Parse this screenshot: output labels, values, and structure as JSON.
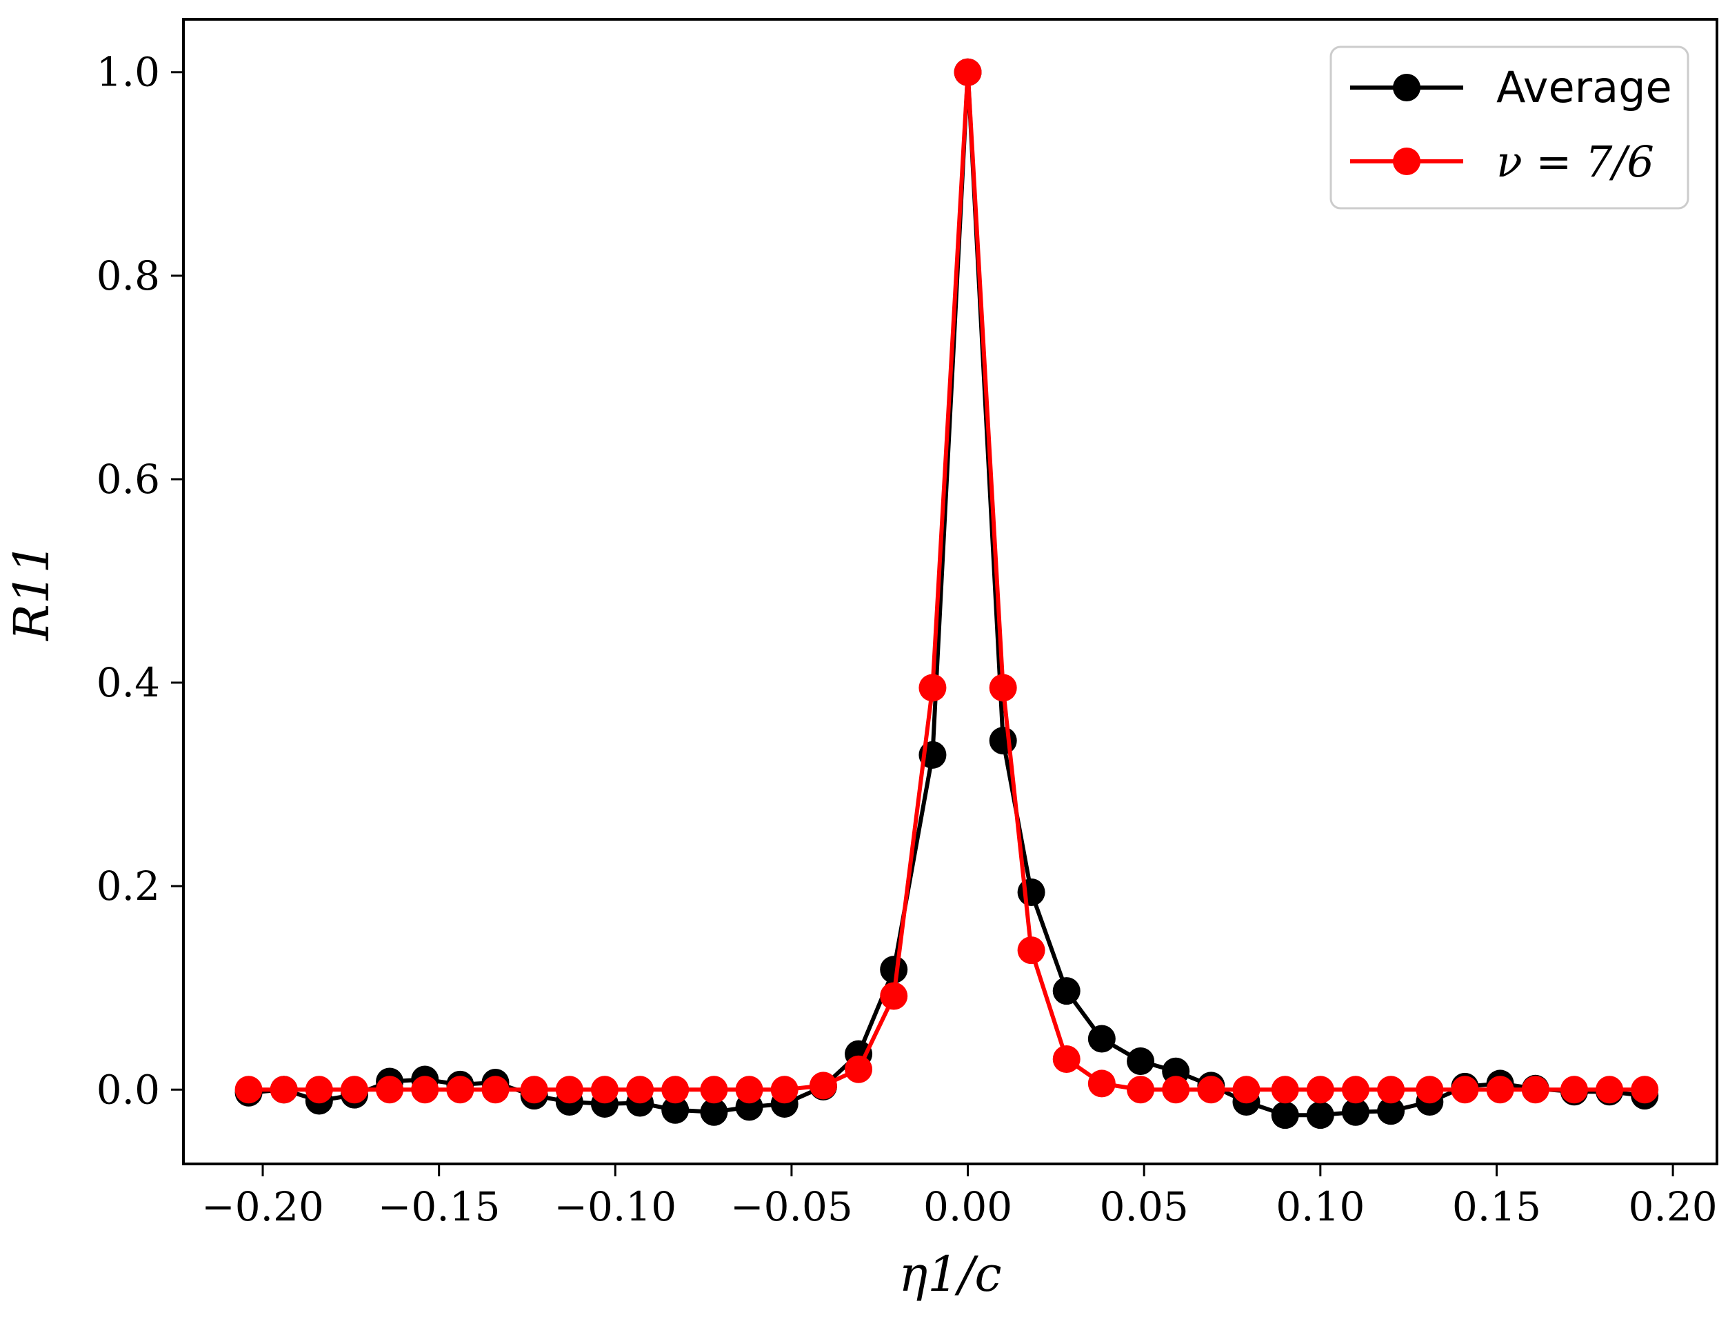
{
  "chart_data": {
    "type": "line",
    "xlabel": "η1/c",
    "ylabel": "R11",
    "xlim": [
      -0.2225,
      0.2125
    ],
    "ylim": [
      -0.073,
      1.052
    ],
    "xticks": [
      -0.2,
      -0.15,
      -0.1,
      -0.05,
      0.0,
      0.05,
      0.1,
      0.15,
      0.2
    ],
    "xtick_labels": [
      "−0.20",
      "−0.15",
      "−0.10",
      "−0.05",
      "0.00",
      "0.05",
      "0.10",
      "0.15",
      "0.20"
    ],
    "yticks": [
      0.0,
      0.2,
      0.4,
      0.6,
      0.8,
      1.0
    ],
    "ytick_labels": [
      "0.0",
      "0.2",
      "0.4",
      "0.6",
      "0.8",
      "1.0"
    ],
    "legend_position": "top-right",
    "grid": false,
    "x": [
      -0.204,
      -0.194,
      -0.184,
      -0.174,
      -0.164,
      -0.154,
      -0.144,
      -0.134,
      -0.123,
      -0.113,
      -0.103,
      -0.093,
      -0.083,
      -0.072,
      -0.062,
      -0.052,
      -0.041,
      -0.031,
      -0.021,
      -0.01,
      0.0,
      0.01,
      0.018,
      0.028,
      0.038,
      0.049,
      0.059,
      0.069,
      0.079,
      0.09,
      0.1,
      0.11,
      0.12,
      0.131,
      0.141,
      0.151,
      0.161,
      0.172,
      0.182,
      0.192
    ],
    "series": [
      {
        "name": "Average",
        "color": "#000000",
        "values": [
          -0.003,
          0.0,
          -0.011,
          -0.005,
          0.008,
          0.01,
          0.005,
          0.007,
          -0.006,
          -0.012,
          -0.014,
          -0.013,
          -0.02,
          -0.022,
          -0.017,
          -0.014,
          0.003,
          0.035,
          0.118,
          0.329,
          1.0,
          0.343,
          0.194,
          0.097,
          0.05,
          0.028,
          0.018,
          0.004,
          -0.012,
          -0.025,
          -0.025,
          -0.022,
          -0.021,
          -0.012,
          0.003,
          0.006,
          0.001,
          -0.002,
          -0.002,
          -0.006
        ]
      },
      {
        "name": "ν = 7/6",
        "color": "#ff0000",
        "values": [
          0.0,
          0.0,
          0.0,
          0.0,
          0.0,
          0.0,
          0.0,
          0.0,
          0.0,
          0.0,
          0.0,
          0.0,
          0.0,
          0.0,
          0.0,
          0.0,
          0.004,
          0.02,
          0.092,
          0.395,
          1.0,
          0.395,
          0.137,
          0.03,
          0.006,
          0.0,
          0.0,
          0.0,
          0.0,
          0.0,
          0.0,
          0.0,
          0.0,
          0.0,
          0.0,
          0.0,
          0.0,
          0.0,
          0.0,
          0.0
        ]
      }
    ]
  }
}
